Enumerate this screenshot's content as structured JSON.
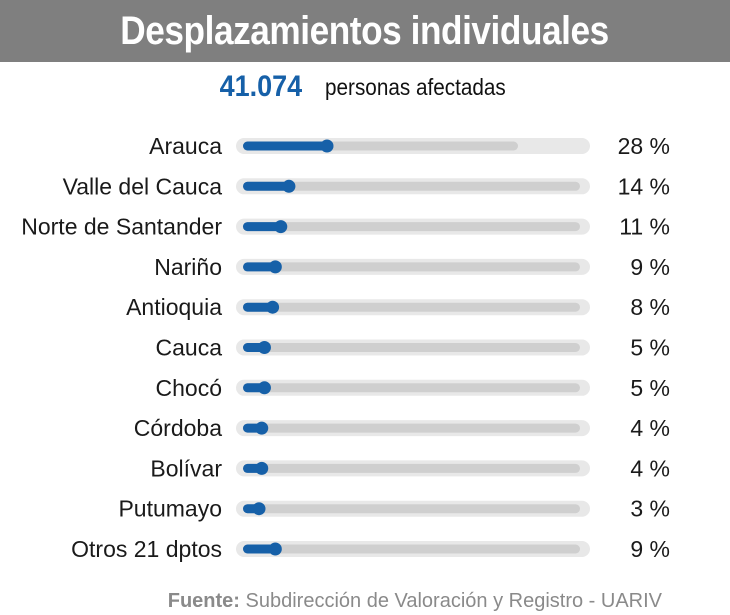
{
  "header": {
    "title": "Desplazamientos individuales"
  },
  "summary": {
    "total": "41.074",
    "label": "personas afectadas"
  },
  "source": {
    "label": "Fuente:",
    "text": "Subdirección de Valoración y Registro - UARIV"
  },
  "colors": {
    "accent": "#1660a8",
    "track": "#cfcfcf",
    "track_outer": "#e8e8e8",
    "title_bg": "#7f7f7f"
  },
  "chart_data": {
    "type": "bar",
    "orientation": "horizontal",
    "categories": [
      "Arauca",
      "Valle del Cauca",
      "Norte de Santander",
      "Nariño",
      "Antioquia",
      "Cauca",
      "Chocó",
      "Córdoba",
      "Bolívar",
      "Putumayo",
      "Otros 21 dptos"
    ],
    "values": [
      28,
      14,
      11,
      9,
      8,
      5,
      5,
      4,
      4,
      3,
      9
    ],
    "value_labels": [
      "28 %",
      "14 %",
      "11 %",
      "9 %",
      "8 %",
      "5 %",
      "5 %",
      "4 %",
      "4 %",
      "3 %",
      "9 %"
    ],
    "unit": "%",
    "xlim": [
      0,
      100
    ],
    "title": "Desplazamientos individuales",
    "xlabel": "",
    "ylabel": ""
  }
}
